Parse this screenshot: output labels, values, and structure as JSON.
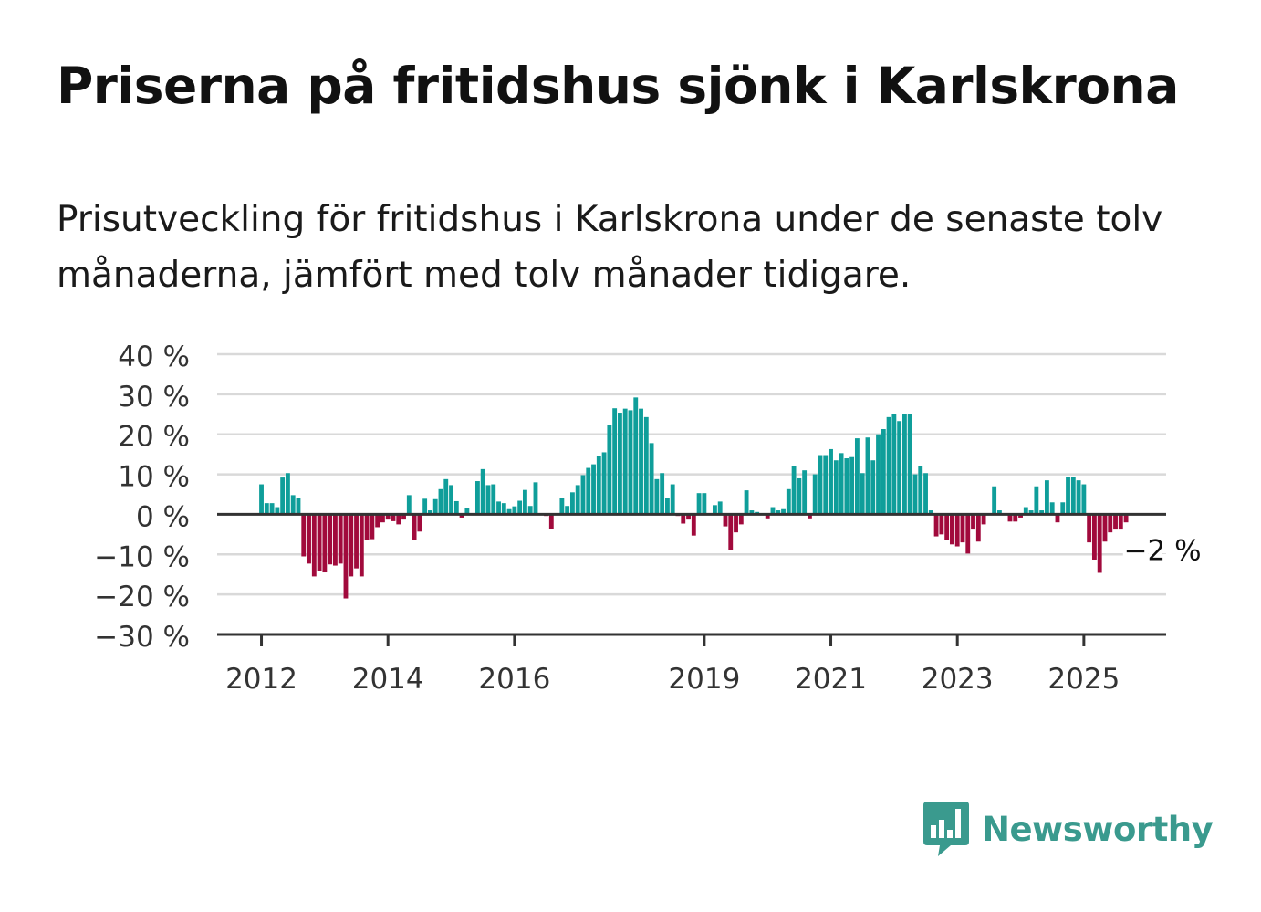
{
  "title": "Priserna på fritidshus sjönk i Karlskrona",
  "subtitle": "Prisutveckling för fritidshus i Karlskrona under de senaste tolv månaderna, jämfört med tolv månader tidigare.",
  "brand": {
    "name": "Newsworthy",
    "color": "#3a9a8e"
  },
  "colors": {
    "positive": "#0f9e9a",
    "negative": "#a10a3c",
    "grid": "#d9d9d9",
    "axis": "#333333"
  },
  "chart_data": {
    "type": "bar",
    "ylim": [
      -30,
      40
    ],
    "yticks": [
      40,
      30,
      20,
      10,
      0,
      -10,
      -20,
      -30
    ],
    "ytick_labels": [
      "40 %",
      "30 %",
      "20 %",
      "10 %",
      "0 %",
      "−10 %",
      "−20 %",
      "−30 %"
    ],
    "xtick_labels": [
      "2012",
      "2014",
      "2016",
      "2019",
      "2021",
      "2023",
      "2025"
    ],
    "xtick_positions": [
      2012,
      2014,
      2016,
      2019,
      2021,
      2023,
      2025
    ],
    "xlim": [
      2011.3,
      2026.3
    ],
    "x_start": 2012.0,
    "x_step": 0.083333,
    "last_value_label": "−2 %",
    "grid": true,
    "values": [
      7.5,
      2.8,
      2.8,
      1.8,
      9.2,
      10.3,
      4.8,
      4.0,
      -10.5,
      -12.3,
      -15.5,
      -14.2,
      -14.5,
      -12.5,
      -12.8,
      -12.3,
      -21.0,
      -15.5,
      -13.5,
      -15.5,
      -6.3,
      -6.2,
      -3.2,
      -2.0,
      -1.3,
      -1.7,
      -2.5,
      -1.3,
      4.8,
      -6.3,
      -4.3,
      3.9,
      1.0,
      3.8,
      6.3,
      8.8,
      7.3,
      3.3,
      -0.8,
      1.6,
      0.3,
      8.3,
      11.3,
      7.3,
      7.5,
      3.2,
      2.8,
      1.3,
      2.0,
      3.4,
      6.1,
      2.1,
      8.0,
      0.0,
      -0.4,
      -3.7,
      0.0,
      4.2,
      2.1,
      5.5,
      7.3,
      9.8,
      11.6,
      12.5,
      14.6,
      15.5,
      22.3,
      26.5,
      25.4,
      26.4,
      26.0,
      29.2,
      26.4,
      24.3,
      17.8,
      8.8,
      10.3,
      4.2,
      7.5,
      -0.4,
      -2.3,
      -1.3,
      -5.3,
      5.3,
      5.3,
      0.0,
      2.3,
      3.2,
      -3.0,
      -8.8,
      -4.5,
      -2.5,
      6.0,
      1.0,
      0.6,
      0.0,
      -1.0,
      1.8,
      1.0,
      1.3,
      6.3,
      12.0,
      9.0,
      11.0,
      -1.0,
      10.0,
      14.8,
      14.8,
      16.3,
      13.5,
      15.3,
      14.0,
      14.3,
      19.0,
      10.3,
      19.2,
      13.5,
      20.0,
      21.3,
      24.3,
      25.0,
      23.3,
      25.0,
      25.0,
      10.0,
      12.1,
      10.3,
      1.0,
      -5.5,
      -5.0,
      -6.5,
      -7.5,
      -8.0,
      -7.0,
      -9.8,
      -3.8,
      -6.8,
      -2.5,
      0.0,
      7.0,
      1.0,
      0.3,
      -1.8,
      -1.8,
      -0.8,
      1.8,
      1.0,
      7.0,
      1.0,
      8.5,
      3.0,
      -2.0,
      3.0,
      9.3,
      9.3,
      8.5,
      7.5,
      -7.0,
      -11.3,
      -14.6,
      -6.8,
      -4.5,
      -3.8,
      -3.8,
      -2.0
    ]
  }
}
